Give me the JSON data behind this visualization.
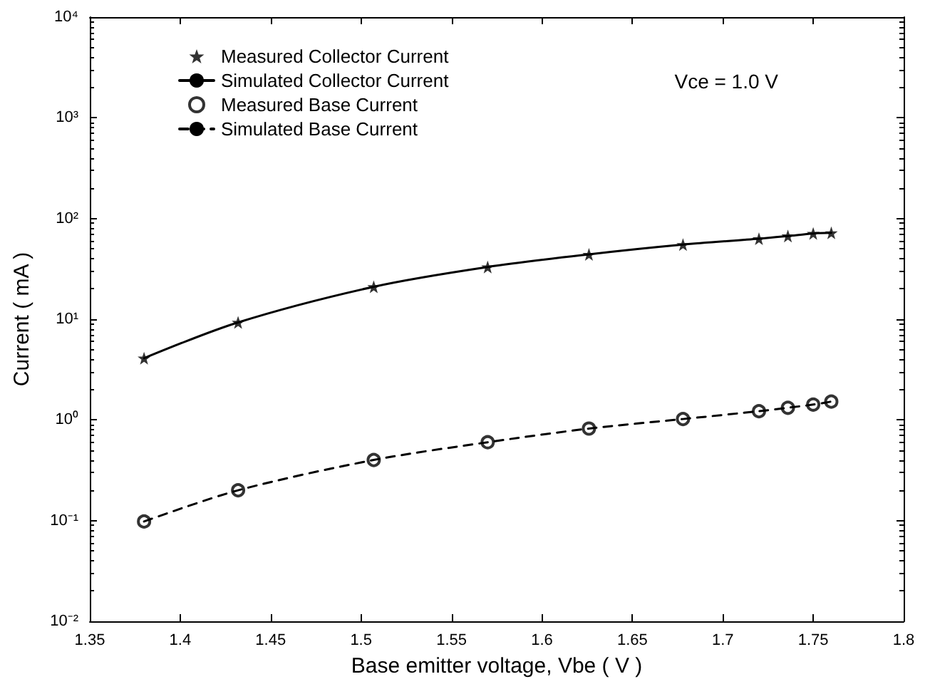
{
  "chart_data": {
    "type": "scatter",
    "xlabel": "Base emitter voltage, Vbe ( V )",
    "ylabel": "Current ( mA )",
    "annotations": [
      "Vce = 1.0 V"
    ],
    "x": [
      1.38,
      1.432,
      1.507,
      1.57,
      1.626,
      1.678,
      1.72,
      1.736,
      1.75,
      1.76
    ],
    "series": [
      {
        "name": "Measured Collector Current",
        "marker": "star",
        "color": "#000000",
        "values": [
          4.1,
          9.3,
          21,
          33,
          44,
          55,
          63,
          67,
          71,
          72
        ]
      },
      {
        "name": "Simulated Collector Current",
        "type": "line",
        "marker": "none",
        "line_style": "solid",
        "color": "#000000",
        "values": [
          4.1,
          9.3,
          21,
          33,
          44,
          55,
          63,
          67,
          71,
          72
        ]
      },
      {
        "name": "Measured Base Current",
        "marker": "circle",
        "color": "#000000",
        "values": [
          0.098,
          0.2,
          0.4,
          0.6,
          0.82,
          1.02,
          1.22,
          1.32,
          1.42,
          1.52
        ]
      },
      {
        "name": "Simulated Base Current",
        "type": "line",
        "marker": "none",
        "line_style": "dashed",
        "color": "#000000",
        "values": [
          0.098,
          0.2,
          0.4,
          0.6,
          0.82,
          1.02,
          1.22,
          1.32,
          1.42,
          1.52
        ]
      }
    ],
    "log": "y",
    "grid": false,
    "legend": "top left",
    "xlim": [
      1.35,
      1.8
    ],
    "xticks": [
      1.35,
      1.4,
      1.45,
      1.5,
      1.55,
      1.6,
      1.65,
      1.7,
      1.75,
      1.8
    ],
    "ylim": [
      0.01,
      10000
    ],
    "yticks": [
      {
        "value": 0.01,
        "label": "10⁻²"
      },
      {
        "value": 0.1,
        "label": "10⁻¹"
      },
      {
        "value": 1,
        "label": "10⁰"
      },
      {
        "value": 10,
        "label": "10¹"
      },
      {
        "value": 100,
        "label": "10²"
      },
      {
        "value": 1000,
        "label": "10³"
      },
      {
        "value": 10000,
        "label": "10⁴"
      }
    ]
  }
}
